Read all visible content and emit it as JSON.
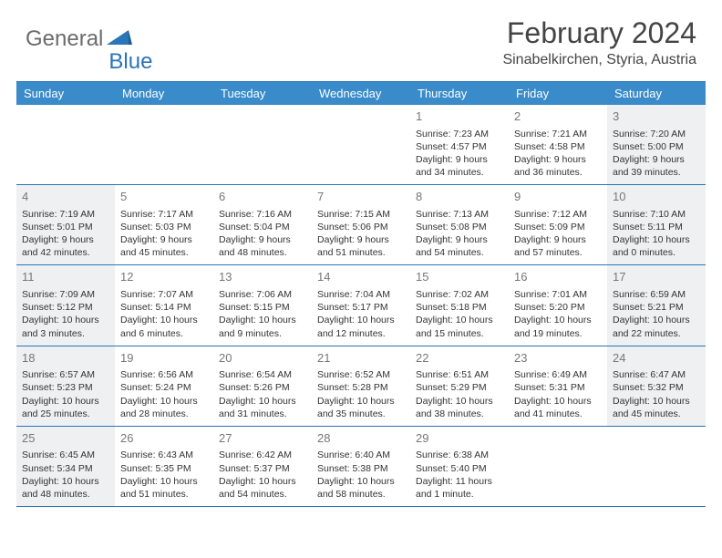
{
  "colors": {
    "header_bar": "#3a8bc9",
    "divider": "#2a74b8",
    "logo_gray": "#6b6b6b",
    "logo_blue": "#2a74b8",
    "shaded_bg": "#eef0f1",
    "text": "#333333",
    "daynum": "#777777"
  },
  "logo": {
    "part1": "General",
    "part2": "Blue"
  },
  "title": "February 2024",
  "location": "Sinabelkirchen, Styria, Austria",
  "day_headers": [
    "Sunday",
    "Monday",
    "Tuesday",
    "Wednesday",
    "Thursday",
    "Friday",
    "Saturday"
  ],
  "weeks": [
    [
      {
        "empty": true
      },
      {
        "empty": true
      },
      {
        "empty": true
      },
      {
        "empty": true
      },
      {
        "day": "1",
        "sunrise": "Sunrise: 7:23 AM",
        "sunset": "Sunset: 4:57 PM",
        "daylight1": "Daylight: 9 hours",
        "daylight2": "and 34 minutes."
      },
      {
        "day": "2",
        "sunrise": "Sunrise: 7:21 AM",
        "sunset": "Sunset: 4:58 PM",
        "daylight1": "Daylight: 9 hours",
        "daylight2": "and 36 minutes."
      },
      {
        "day": "3",
        "shaded": true,
        "sunrise": "Sunrise: 7:20 AM",
        "sunset": "Sunset: 5:00 PM",
        "daylight1": "Daylight: 9 hours",
        "daylight2": "and 39 minutes."
      }
    ],
    [
      {
        "day": "4",
        "shaded": true,
        "sunrise": "Sunrise: 7:19 AM",
        "sunset": "Sunset: 5:01 PM",
        "daylight1": "Daylight: 9 hours",
        "daylight2": "and 42 minutes."
      },
      {
        "day": "5",
        "sunrise": "Sunrise: 7:17 AM",
        "sunset": "Sunset: 5:03 PM",
        "daylight1": "Daylight: 9 hours",
        "daylight2": "and 45 minutes."
      },
      {
        "day": "6",
        "sunrise": "Sunrise: 7:16 AM",
        "sunset": "Sunset: 5:04 PM",
        "daylight1": "Daylight: 9 hours",
        "daylight2": "and 48 minutes."
      },
      {
        "day": "7",
        "sunrise": "Sunrise: 7:15 AM",
        "sunset": "Sunset: 5:06 PM",
        "daylight1": "Daylight: 9 hours",
        "daylight2": "and 51 minutes."
      },
      {
        "day": "8",
        "sunrise": "Sunrise: 7:13 AM",
        "sunset": "Sunset: 5:08 PM",
        "daylight1": "Daylight: 9 hours",
        "daylight2": "and 54 minutes."
      },
      {
        "day": "9",
        "sunrise": "Sunrise: 7:12 AM",
        "sunset": "Sunset: 5:09 PM",
        "daylight1": "Daylight: 9 hours",
        "daylight2": "and 57 minutes."
      },
      {
        "day": "10",
        "shaded": true,
        "sunrise": "Sunrise: 7:10 AM",
        "sunset": "Sunset: 5:11 PM",
        "daylight1": "Daylight: 10 hours",
        "daylight2": "and 0 minutes."
      }
    ],
    [
      {
        "day": "11",
        "shaded": true,
        "sunrise": "Sunrise: 7:09 AM",
        "sunset": "Sunset: 5:12 PM",
        "daylight1": "Daylight: 10 hours",
        "daylight2": "and 3 minutes."
      },
      {
        "day": "12",
        "sunrise": "Sunrise: 7:07 AM",
        "sunset": "Sunset: 5:14 PM",
        "daylight1": "Daylight: 10 hours",
        "daylight2": "and 6 minutes."
      },
      {
        "day": "13",
        "sunrise": "Sunrise: 7:06 AM",
        "sunset": "Sunset: 5:15 PM",
        "daylight1": "Daylight: 10 hours",
        "daylight2": "and 9 minutes."
      },
      {
        "day": "14",
        "sunrise": "Sunrise: 7:04 AM",
        "sunset": "Sunset: 5:17 PM",
        "daylight1": "Daylight: 10 hours",
        "daylight2": "and 12 minutes."
      },
      {
        "day": "15",
        "sunrise": "Sunrise: 7:02 AM",
        "sunset": "Sunset: 5:18 PM",
        "daylight1": "Daylight: 10 hours",
        "daylight2": "and 15 minutes."
      },
      {
        "day": "16",
        "sunrise": "Sunrise: 7:01 AM",
        "sunset": "Sunset: 5:20 PM",
        "daylight1": "Daylight: 10 hours",
        "daylight2": "and 19 minutes."
      },
      {
        "day": "17",
        "shaded": true,
        "sunrise": "Sunrise: 6:59 AM",
        "sunset": "Sunset: 5:21 PM",
        "daylight1": "Daylight: 10 hours",
        "daylight2": "and 22 minutes."
      }
    ],
    [
      {
        "day": "18",
        "shaded": true,
        "sunrise": "Sunrise: 6:57 AM",
        "sunset": "Sunset: 5:23 PM",
        "daylight1": "Daylight: 10 hours",
        "daylight2": "and 25 minutes."
      },
      {
        "day": "19",
        "sunrise": "Sunrise: 6:56 AM",
        "sunset": "Sunset: 5:24 PM",
        "daylight1": "Daylight: 10 hours",
        "daylight2": "and 28 minutes."
      },
      {
        "day": "20",
        "sunrise": "Sunrise: 6:54 AM",
        "sunset": "Sunset: 5:26 PM",
        "daylight1": "Daylight: 10 hours",
        "daylight2": "and 31 minutes."
      },
      {
        "day": "21",
        "sunrise": "Sunrise: 6:52 AM",
        "sunset": "Sunset: 5:28 PM",
        "daylight1": "Daylight: 10 hours",
        "daylight2": "and 35 minutes."
      },
      {
        "day": "22",
        "sunrise": "Sunrise: 6:51 AM",
        "sunset": "Sunset: 5:29 PM",
        "daylight1": "Daylight: 10 hours",
        "daylight2": "and 38 minutes."
      },
      {
        "day": "23",
        "sunrise": "Sunrise: 6:49 AM",
        "sunset": "Sunset: 5:31 PM",
        "daylight1": "Daylight: 10 hours",
        "daylight2": "and 41 minutes."
      },
      {
        "day": "24",
        "shaded": true,
        "sunrise": "Sunrise: 6:47 AM",
        "sunset": "Sunset: 5:32 PM",
        "daylight1": "Daylight: 10 hours",
        "daylight2": "and 45 minutes."
      }
    ],
    [
      {
        "day": "25",
        "shaded": true,
        "sunrise": "Sunrise: 6:45 AM",
        "sunset": "Sunset: 5:34 PM",
        "daylight1": "Daylight: 10 hours",
        "daylight2": "and 48 minutes."
      },
      {
        "day": "26",
        "sunrise": "Sunrise: 6:43 AM",
        "sunset": "Sunset: 5:35 PM",
        "daylight1": "Daylight: 10 hours",
        "daylight2": "and 51 minutes."
      },
      {
        "day": "27",
        "sunrise": "Sunrise: 6:42 AM",
        "sunset": "Sunset: 5:37 PM",
        "daylight1": "Daylight: 10 hours",
        "daylight2": "and 54 minutes."
      },
      {
        "day": "28",
        "sunrise": "Sunrise: 6:40 AM",
        "sunset": "Sunset: 5:38 PM",
        "daylight1": "Daylight: 10 hours",
        "daylight2": "and 58 minutes."
      },
      {
        "day": "29",
        "sunrise": "Sunrise: 6:38 AM",
        "sunset": "Sunset: 5:40 PM",
        "daylight1": "Daylight: 11 hours",
        "daylight2": "and 1 minute."
      },
      {
        "empty": true
      },
      {
        "empty": true
      }
    ]
  ]
}
